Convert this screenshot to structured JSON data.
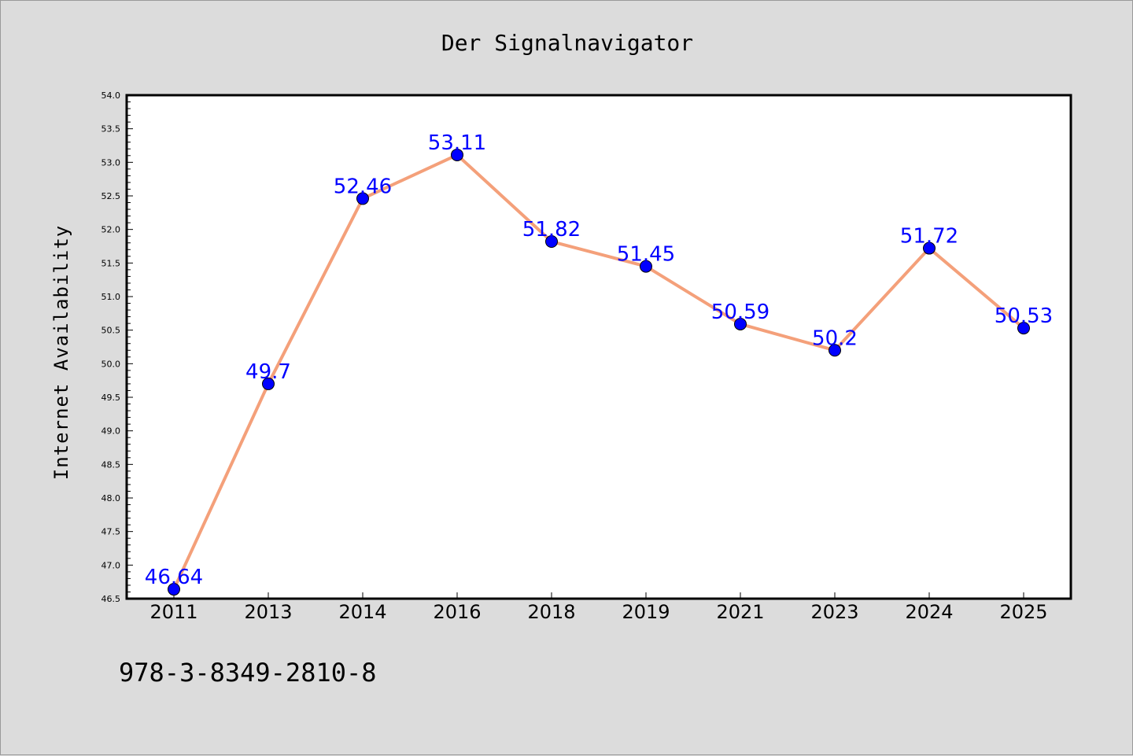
{
  "page": {
    "title": "Der Signalnavigator",
    "footer_text": "978-3-8349-2810-8"
  },
  "colors": {
    "background": "#dcdcdc",
    "plot_bg": "#ffffff",
    "line": "#f4a07a",
    "marker": "#0000ff",
    "label": "#0000ff",
    "axis": "#000000"
  },
  "chart_data": {
    "type": "line",
    "title": "Der Signalnavigator",
    "xlabel": "",
    "ylabel": "Internet Availability",
    "categories": [
      "2011",
      "2013",
      "2014",
      "2016",
      "2018",
      "2019",
      "2021",
      "2023",
      "2024",
      "2025"
    ],
    "series": [
      {
        "values": [
          46.64,
          49.7,
          52.46,
          53.11,
          51.82,
          51.45,
          50.59,
          50.2,
          51.72,
          50.53
        ],
        "labels": [
          "46.64",
          "49.7",
          "52.46",
          "53.11",
          "51.82",
          "51.45",
          "50.59",
          "50.2",
          "51.72",
          "50.53"
        ]
      }
    ],
    "ylim": [
      46.5,
      54.0
    ],
    "y_ticks": [
      "46.5",
      "47.0",
      "47.5",
      "48.0",
      "48.5",
      "49.0",
      "49.5",
      "50.0",
      "50.5",
      "51.0",
      "51.5",
      "52.0",
      "52.5",
      "53.0",
      "53.5",
      "54.0"
    ],
    "y_minor_step": 0.1,
    "grid": false,
    "legend": "none",
    "markers": true,
    "data_labels": true
  }
}
